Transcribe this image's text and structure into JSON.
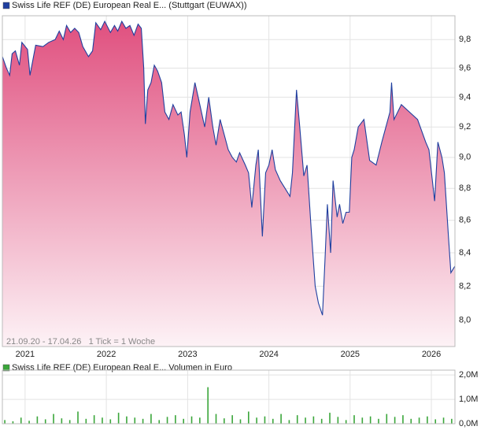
{
  "chart_data": [
    {
      "type": "area",
      "log_scale": true,
      "grid": true,
      "legend": "Swiss Life REF (DE) European Real E... (Stuttgart (EUWAX))",
      "annotation": "21.09.20 - 17.04.26   1 Tick = 1 Woche",
      "x": [
        2020.72,
        2020.77,
        2020.81,
        2020.84,
        2020.88,
        2020.93,
        2020.96,
        2021.03,
        2021.06,
        2021.13,
        2021.22,
        2021.29,
        2021.37,
        2021.42,
        2021.47,
        2021.51,
        2021.56,
        2021.61,
        2021.66,
        2021.71,
        2021.78,
        2021.83,
        2021.87,
        2021.93,
        2021.98,
        2022.05,
        2022.1,
        2022.14,
        2022.19,
        2022.24,
        2022.29,
        2022.34,
        2022.39,
        2022.43,
        2022.46,
        2022.48,
        2022.51,
        2022.55,
        2022.59,
        2022.63,
        2022.68,
        2022.72,
        2022.77,
        2022.82,
        2022.88,
        2022.92,
        2022.96,
        2022.99,
        2023.03,
        2023.09,
        2023.13,
        2023.17,
        2023.21,
        2023.26,
        2023.31,
        2023.35,
        2023.4,
        2023.45,
        2023.5,
        2023.55,
        2023.6,
        2023.64,
        2023.71,
        2023.75,
        2023.79,
        2023.84,
        2023.87,
        2023.92,
        2023.96,
        2024.0,
        2024.04,
        2024.08,
        2024.14,
        2024.2,
        2024.26,
        2024.29,
        2024.34,
        2024.38,
        2024.43,
        2024.47,
        2024.52,
        2024.57,
        2024.61,
        2024.66,
        2024.69,
        2024.72,
        2024.76,
        2024.79,
        2024.84,
        2024.87,
        2024.91,
        2024.95,
        2024.99,
        2025.02,
        2025.05,
        2025.1,
        2025.17,
        2025.24,
        2025.32,
        2025.39,
        2025.49,
        2025.51,
        2025.54,
        2025.63,
        2025.73,
        2025.83,
        2025.93,
        2025.97,
        2026.04,
        2026.08,
        2026.13,
        2026.16,
        2026.21,
        2026.24,
        2026.29
      ],
      "series": [
        {
          "name": "Swiss Life REF (DE) European Real E... (Stuttgart (EUWAX))",
          "color": "#1f3f9f",
          "values": [
            9.68,
            9.6,
            9.55,
            9.7,
            9.72,
            9.62,
            9.78,
            9.73,
            9.55,
            9.76,
            9.75,
            9.78,
            9.8,
            9.86,
            9.8,
            9.9,
            9.85,
            9.88,
            9.85,
            9.75,
            9.68,
            9.72,
            9.92,
            9.87,
            9.93,
            9.85,
            9.9,
            9.86,
            9.93,
            9.88,
            9.9,
            9.83,
            9.91,
            9.88,
            9.6,
            9.22,
            9.45,
            9.5,
            9.62,
            9.58,
            9.5,
            9.3,
            9.25,
            9.35,
            9.28,
            9.3,
            9.15,
            9.0,
            9.3,
            9.5,
            9.4,
            9.3,
            9.2,
            9.4,
            9.2,
            9.08,
            9.25,
            9.15,
            9.05,
            9.0,
            8.97,
            9.03,
            8.95,
            8.9,
            8.68,
            8.95,
            9.05,
            8.5,
            8.9,
            8.95,
            9.05,
            8.92,
            8.85,
            8.8,
            8.75,
            8.9,
            9.45,
            9.2,
            8.88,
            8.95,
            8.55,
            8.2,
            8.1,
            8.03,
            8.35,
            8.7,
            8.4,
            8.85,
            8.62,
            8.7,
            8.58,
            8.65,
            8.65,
            9.0,
            9.05,
            9.2,
            9.25,
            8.98,
            8.95,
            9.1,
            9.3,
            9.5,
            9.25,
            9.35,
            9.3,
            9.25,
            9.1,
            9.05,
            8.72,
            9.1,
            9.0,
            8.9,
            8.5,
            8.28,
            8.32
          ]
        }
      ],
      "xlim": [
        2020.72,
        2026.29
      ],
      "xticks": [
        2021,
        2022,
        2023,
        2024,
        2025,
        2026
      ],
      "ylim": [
        7.85,
        9.97
      ],
      "yticks": [
        {
          "value": 8.0,
          "label": "8,0"
        },
        {
          "value": 8.2,
          "label": "8,2"
        },
        {
          "value": 8.4,
          "label": "8,4"
        },
        {
          "value": 8.6,
          "label": "8,6"
        },
        {
          "value": 8.8,
          "label": "8,8"
        },
        {
          "value": 9.0,
          "label": "9,0"
        },
        {
          "value": 9.2,
          "label": "9,2"
        },
        {
          "value": 9.4,
          "label": "9,4"
        },
        {
          "value": 9.6,
          "label": "9,6"
        },
        {
          "value": 9.8,
          "label": "9,8"
        }
      ]
    },
    {
      "type": "bar",
      "grid": true,
      "legend": "Swiss Life REF (DE) European Real E... Volumen in Euro",
      "x": [
        2020.75,
        2020.85,
        2020.95,
        2021.05,
        2021.15,
        2021.25,
        2021.35,
        2021.45,
        2021.55,
        2021.65,
        2021.75,
        2021.85,
        2021.95,
        2022.05,
        2022.15,
        2022.25,
        2022.35,
        2022.45,
        2022.55,
        2022.65,
        2022.75,
        2022.85,
        2022.95,
        2023.05,
        2023.15,
        2023.25,
        2023.35,
        2023.45,
        2023.55,
        2023.65,
        2023.75,
        2023.85,
        2023.95,
        2024.05,
        2024.15,
        2024.25,
        2024.35,
        2024.45,
        2024.55,
        2024.65,
        2024.75,
        2024.85,
        2024.95,
        2025.05,
        2025.15,
        2025.25,
        2025.35,
        2025.45,
        2025.55,
        2025.65,
        2025.75,
        2025.85,
        2025.95,
        2026.05,
        2026.15,
        2026.25
      ],
      "series": [
        {
          "name": "Swiss Life REF (DE) European Real E... Volumen in Euro",
          "color": "#3aa63a",
          "values": [
            150000,
            100000,
            250000,
            120000,
            300000,
            180000,
            400000,
            220000,
            150000,
            500000,
            200000,
            350000,
            250000,
            180000,
            450000,
            300000,
            250000,
            200000,
            400000,
            150000,
            280000,
            350000,
            200000,
            300000,
            250000,
            1500000,
            400000,
            220000,
            350000,
            180000,
            500000,
            250000,
            300000,
            200000,
            400000,
            150000,
            350000,
            250000,
            300000,
            200000,
            450000,
            280000,
            150000,
            350000,
            250000,
            300000,
            200000,
            400000,
            280000,
            350000,
            200000,
            250000,
            300000,
            180000,
            250000,
            200000
          ]
        }
      ],
      "xlim": [
        2020.72,
        2026.29
      ],
      "xticks": [
        2021,
        2022,
        2023,
        2024,
        2025,
        2026
      ],
      "ylim": [
        0,
        2200000
      ],
      "yticks": [
        {
          "value": 0,
          "label": "0,0M"
        },
        {
          "value": 1000000,
          "label": "1,0M"
        },
        {
          "value": 2000000,
          "label": "2,0M"
        }
      ]
    }
  ]
}
